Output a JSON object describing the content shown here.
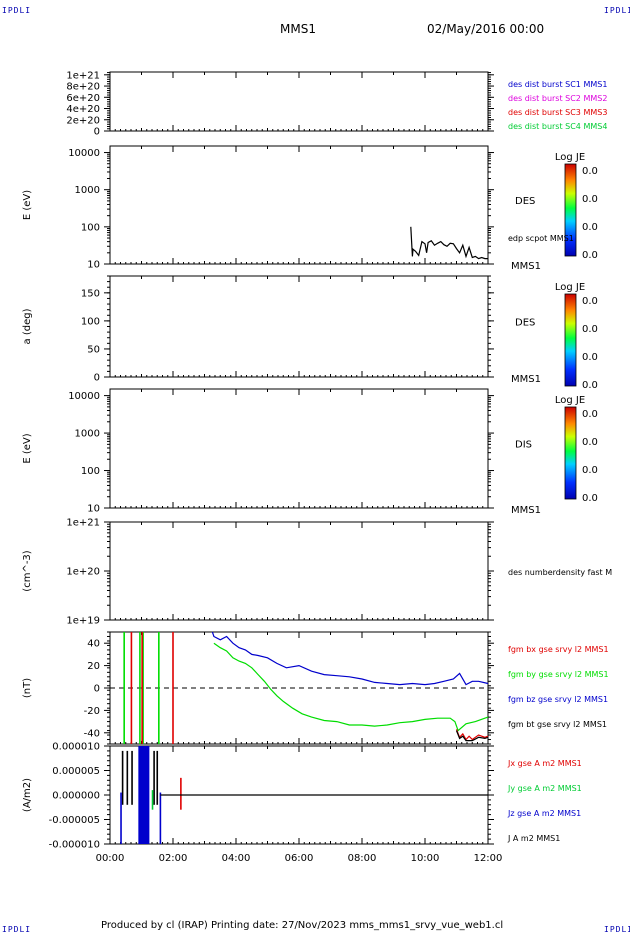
{
  "page": {
    "corner_label": "IPDLI",
    "spacecraft": "MMS1",
    "date_time": "02/May/2016 00:00",
    "footer": "Produced by cl (IRAP)   Printing date: 27/Nov/2023   mms_mms1_srvy_vue_web1.cl"
  },
  "colors": {
    "black": "#000000",
    "red": "#e00000",
    "green": "#00dd00",
    "blue": "#0000cc",
    "magenta": "#dd00dd",
    "cyan_green": "#00cc33"
  },
  "time_axis": {
    "tick_labels": [
      "00:00",
      "02:00",
      "04:00",
      "06:00",
      "08:00",
      "10:00",
      "12:00"
    ],
    "range_hours": [
      0,
      12
    ]
  },
  "chart_data": [
    {
      "type": "line",
      "panel": "dist-burst",
      "ylabel": "",
      "yticks": [
        "1e+21",
        "8e+20",
        "6e+20",
        "4e+20",
        "2e+20",
        "0"
      ],
      "ylim": [
        0,
        1.05e+21
      ],
      "legend": [
        {
          "label": "des dist burst SC1 MMS1",
          "color": "#0000cc"
        },
        {
          "label": "des dist burst SC2 MMS2",
          "color": "#dd00dd"
        },
        {
          "label": "des dist burst SC3 MMS3",
          "color": "#e00000"
        },
        {
          "label": "des dist burst SC4 MMS4",
          "color": "#00cc33"
        }
      ],
      "series": [
        {
          "values": []
        }
      ]
    },
    {
      "type": "heatmap",
      "panel": "des-energy",
      "ylabel": "E (eV)",
      "scale": "log",
      "yticks": [
        "10000",
        "1000",
        "100",
        "10"
      ],
      "ylim": [
        10,
        15000
      ],
      "side_label": "DES",
      "instrument": "MMS1",
      "overlay_label": "edp scpot MMS1",
      "colorbar": {
        "title": "Log JE",
        "ticks": [
          "0.0",
          "0.0",
          "0.0",
          "0.0"
        ]
      },
      "overlay_x": [
        9.55,
        9.6,
        9.62,
        9.7,
        9.8,
        9.9,
        10.0,
        10.05,
        10.1,
        10.2,
        10.3,
        10.4,
        10.5,
        10.6,
        10.7,
        10.8,
        10.9,
        11.0,
        11.1,
        11.2,
        11.3,
        11.4,
        11.5,
        11.6,
        11.7,
        11.8,
        11.9,
        12.0
      ],
      "overlay_y": [
        100,
        16,
        25,
        22,
        17,
        40,
        35,
        20,
        38,
        42,
        32,
        36,
        40,
        33,
        30,
        36,
        35,
        26,
        20,
        32,
        16,
        28,
        15,
        16,
        14,
        15,
        14,
        14
      ]
    },
    {
      "type": "heatmap",
      "panel": "des-pitch",
      "ylabel": "a (deg)",
      "yticks": [
        "150",
        "100",
        "50",
        "0"
      ],
      "ylim": [
        0,
        180
      ],
      "side_label": "DES",
      "instrument": "MMS1",
      "colorbar": {
        "title": "Log JE",
        "ticks": [
          "0.0",
          "0.0",
          "0.0",
          "0.0"
        ]
      }
    },
    {
      "type": "heatmap",
      "panel": "dis-energy",
      "ylabel": "E (eV)",
      "scale": "log",
      "yticks": [
        "10000",
        "1000",
        "100",
        "10"
      ],
      "ylim": [
        10,
        15000
      ],
      "side_label": "DIS",
      "instrument": "MMS1",
      "colorbar": {
        "title": "Log JE",
        "ticks": [
          "0.0",
          "0.0",
          "0.0",
          "0.0"
        ]
      }
    },
    {
      "type": "line",
      "panel": "density",
      "ylabel": "(cm^-3)",
      "scale": "log",
      "yticks": [
        "1e+21",
        "1e+20",
        "1e+19"
      ],
      "ylim": [
        1e+19,
        1e+21
      ],
      "legend": [
        {
          "label": "des numberdensity fast M",
          "color": "#000000"
        }
      ],
      "series": [
        {
          "values": []
        }
      ]
    },
    {
      "type": "line",
      "panel": "magnetic-field",
      "ylabel": "(nT)",
      "yticks": [
        "40",
        "20",
        "0",
        "-20",
        "-40"
      ],
      "ylim": [
        -50,
        50
      ],
      "legend": [
        {
          "label": "fgm bx gse srvy l2 MMS1",
          "color": "#e00000"
        },
        {
          "label": "fgm by gse srvy l2 MMS1",
          "color": "#00dd00"
        },
        {
          "label": "fgm bz gse srvy l2 MMS1",
          "color": "#0000cc"
        },
        {
          "label": "fgm bt gse srvy l2 MMS1",
          "color": "#000000"
        }
      ],
      "series": [
        {
          "color": "#0000cc",
          "x": [
            3.25,
            3.3,
            3.5,
            3.7,
            3.9,
            4.1,
            4.3,
            4.5,
            4.7,
            5.0,
            5.3,
            5.6,
            6.0,
            6.4,
            6.8,
            7.2,
            7.6,
            8.0,
            8.4,
            8.8,
            9.2,
            9.6,
            10.0,
            10.3,
            10.6,
            10.9,
            11.1,
            11.3,
            11.5,
            11.7,
            12.0
          ],
          "y": [
            50,
            46,
            43,
            46,
            40,
            36,
            34,
            30,
            29,
            27,
            22,
            18,
            20,
            15,
            12,
            11,
            10,
            8,
            5,
            4,
            3,
            4,
            3,
            4,
            6,
            8,
            13,
            3,
            6,
            6,
            4
          ]
        },
        {
          "color": "#00dd00",
          "x": [
            3.3,
            3.5,
            3.7,
            3.9,
            4.1,
            4.3,
            4.5,
            4.7,
            4.9,
            5.1,
            5.3,
            5.5,
            5.8,
            6.1,
            6.4,
            6.8,
            7.2,
            7.6,
            8.0,
            8.4,
            8.8,
            9.2,
            9.6,
            10.0,
            10.4,
            10.8,
            10.95,
            11.05,
            11.3,
            11.6,
            12.0
          ],
          "y": [
            40,
            36,
            33,
            27,
            24,
            22,
            18,
            12,
            6,
            -1,
            -7,
            -12,
            -18,
            -23,
            -26,
            -29,
            -30,
            -33,
            -33,
            -34,
            -33,
            -31,
            -30,
            -28,
            -27,
            -27,
            -30,
            -38,
            -32,
            -30,
            -26
          ]
        },
        {
          "color": "#e00000",
          "x": [
            11.0,
            11.1,
            11.2,
            11.3,
            11.4,
            11.5,
            11.7,
            11.9,
            12.0
          ],
          "y": [
            -37,
            -44,
            -41,
            -46,
            -43,
            -46,
            -42,
            -44,
            -43
          ]
        },
        {
          "color": "#000000",
          "x": [
            11.0,
            11.1,
            11.2,
            11.3,
            11.5,
            11.7,
            11.9,
            12.0
          ],
          "y": [
            -38,
            -45,
            -43,
            -47,
            -47,
            -44,
            -45,
            -44
          ]
        }
      ],
      "spikes": [
        {
          "color": "#00dd00",
          "x": [
            0.45,
            0.95,
            1.05,
            1.55
          ],
          "y_from": 50,
          "y_to": -50
        },
        {
          "color": "#e00000",
          "x": [
            0.68,
            1.02
          ],
          "y_from": 50,
          "y_to": -50
        },
        {
          "color": "#e00000",
          "x": [
            2.0
          ],
          "y_from": 50,
          "y_to": -50
        }
      ]
    },
    {
      "type": "line",
      "panel": "current-density",
      "ylabel": "(A/m2)",
      "yticks": [
        "0.000010",
        "0.000005",
        "0.000000",
        "-0.000005",
        "-0.000010"
      ],
      "ylim": [
        -1e-05,
        1e-05
      ],
      "legend": [
        {
          "label": "Jx gse A m2 MMS1",
          "color": "#e00000"
        },
        {
          "label": "Jy gse A m2 MMS1",
          "color": "#00cc33"
        },
        {
          "label": "Jz gse A m2 MMS1",
          "color": "#0000cc"
        },
        {
          "label": "J A m2 MMS1",
          "color": "#000000"
        }
      ],
      "block": {
        "color": "#0000cc",
        "x_start": 0.9,
        "x_end": 1.25
      },
      "spikes": [
        {
          "color": "#000000",
          "x": [
            0.4,
            0.55,
            0.7,
            1.4,
            1.5
          ],
          "y_from": 9e-06,
          "y_to": -2e-06
        },
        {
          "color": "#0000cc",
          "x": [
            0.35,
            1.6
          ],
          "y_from": 5e-07,
          "y_to": -1e-05
        },
        {
          "color": "#00cc33",
          "x": [
            1.35
          ],
          "y_from": 1e-06,
          "y_to": -3e-06
        },
        {
          "color": "#e00000",
          "x": [
            2.25
          ],
          "y_from": 3.5e-06,
          "y_to": -3e-06
        }
      ],
      "series": [
        {
          "color": "#000000",
          "x": [
            1.6,
            12.0
          ],
          "y": [
            0,
            0
          ]
        }
      ]
    }
  ]
}
